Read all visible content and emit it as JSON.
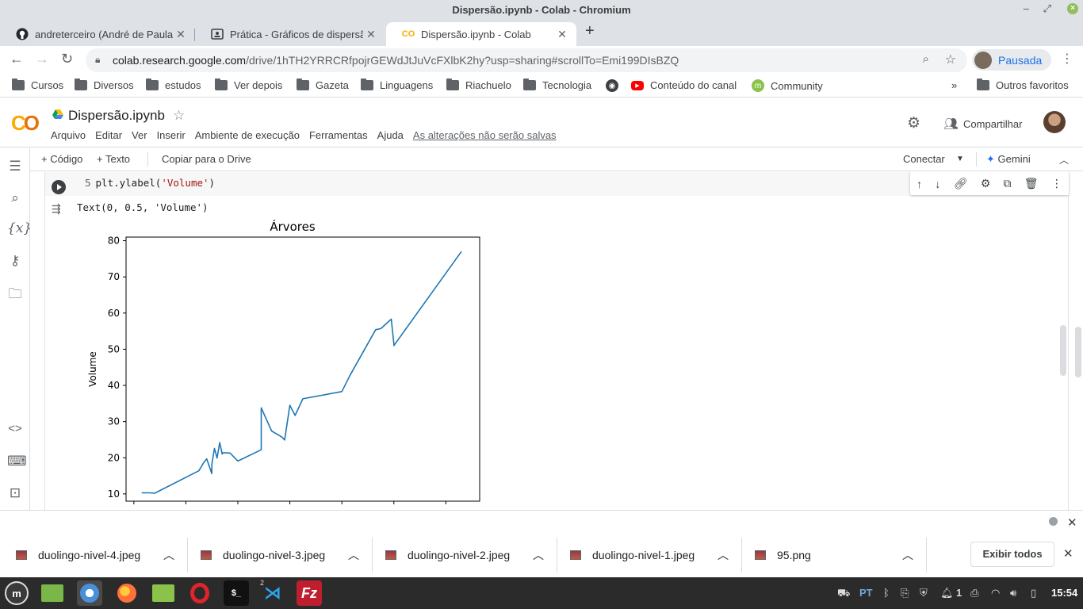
{
  "window": {
    "title": "Dispersão.ipynb - Colab - Chromium"
  },
  "tabs": [
    {
      "label": "andreterceiro (André de Paula",
      "icon": "github-icon"
    },
    {
      "label": "Prática - Gráficos de dispersão",
      "icon": "classroom-icon"
    },
    {
      "label": "Dispersão.ipynb - Colab",
      "icon": "colab-icon",
      "active": true
    }
  ],
  "toolbar": {
    "url_host": "colab.research.google.com",
    "url_path": "/drive/1hTH2YRRCRfpojrGEWdJtJuVcFXlbK2hy?usp=sharing#scrollTo=Emi199DIsBZQ",
    "profile_label": "Pausada"
  },
  "bookmarks": [
    "Cursos",
    "Diversos",
    "estudos",
    "Ver depois",
    "Gazeta",
    "Linguagens",
    "Riachuelo",
    "Tecnologia"
  ],
  "bookmarks_special": {
    "channel": "Conteúdo do canal",
    "community": "Community",
    "other": "Outros favoritos",
    "more": "»"
  },
  "colab": {
    "notebook_title": "Dispersão.ipynb",
    "menu": [
      "Arquivo",
      "Editar",
      "Ver",
      "Inserir",
      "Ambiente de execução",
      "Ferramentas",
      "Ajuda"
    ],
    "unsaved_notice": "As alterações não serão salvas",
    "share_label": "Compartilhar"
  },
  "nb_toolbar": {
    "add_code": "+ Código",
    "add_text": "+ Texto",
    "copy_drive": "Copiar para o Drive",
    "connect": "Conectar",
    "gemini": "Gemini"
  },
  "cell": {
    "line_number": "5",
    "code_prefix": "plt.ylabel(",
    "code_string": "'Volume'",
    "code_suffix": ")",
    "output_text": "Text(0, 0.5, 'Volume')"
  },
  "chart_data": {
    "type": "line",
    "title": "Árvores",
    "xlabel": "",
    "ylabel": "Volume",
    "ylim": [
      8,
      81
    ],
    "xlim": [
      7.7,
      21.3
    ],
    "yticks": [
      10,
      20,
      30,
      40,
      50,
      60,
      70,
      80
    ],
    "grid": false,
    "series": [
      {
        "color": "#1f77b4",
        "x": [
          8.3,
          8.6,
          8.8,
          10.5,
          10.7,
          10.8,
          11.0,
          11.0,
          11.1,
          11.2,
          11.3,
          11.4,
          11.4,
          11.7,
          12.0,
          12.9,
          12.9,
          13.3,
          13.7,
          13.8,
          14.0,
          14.2,
          14.5,
          16.0,
          16.3,
          17.3,
          17.5,
          17.9,
          18.0,
          18.0,
          20.6
        ],
        "y": [
          10.3,
          10.3,
          10.2,
          16.4,
          18.8,
          19.7,
          15.6,
          18.2,
          22.6,
          19.9,
          24.2,
          21.0,
          21.4,
          21.3,
          19.1,
          22.2,
          33.8,
          27.4,
          25.7,
          24.9,
          34.5,
          31.7,
          36.3,
          38.3,
          42.6,
          55.4,
          55.7,
          58.3,
          51.5,
          51.0,
          77.0
        ]
      }
    ]
  },
  "downloads": {
    "items": [
      "duolingo-nivel-4.jpeg",
      "duolingo-nivel-3.jpeg",
      "duolingo-nivel-2.jpeg",
      "duolingo-nivel-1.jpeg",
      "95.png"
    ],
    "show_all": "Exibir todos"
  },
  "taskbar": {
    "lang": "PT",
    "workspace": "1",
    "badge": "2",
    "clock": "15:54"
  }
}
